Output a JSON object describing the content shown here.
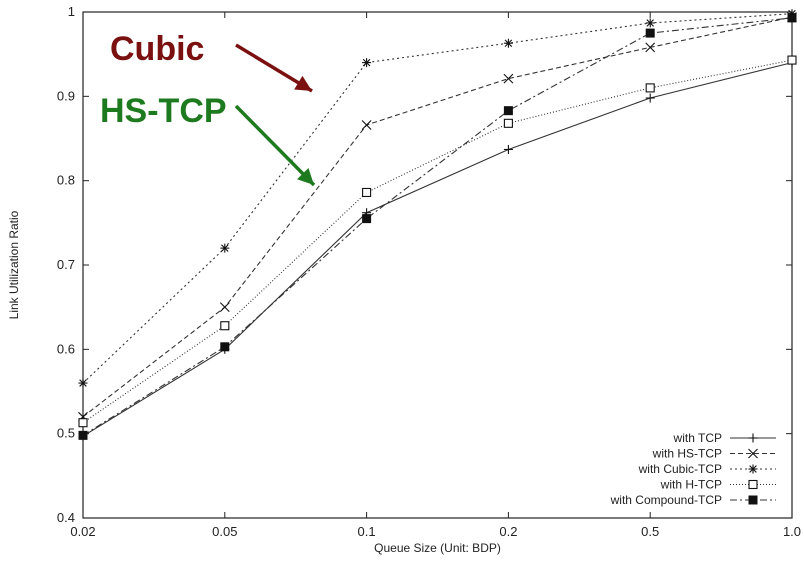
{
  "chart_data": {
    "type": "line",
    "xlabel": "Queue Size (Unit: BDP)",
    "ylabel": "Link Utilization Ratio",
    "x_categories": [
      "0.02",
      "0.05",
      "0.1",
      "0.2",
      "0.5",
      "1.0"
    ],
    "y_ticks": [
      "0.4",
      "0.5",
      "0.6",
      "0.7",
      "0.8",
      "0.9",
      "1"
    ],
    "ylim": [
      0.4,
      1.0
    ],
    "grid": false,
    "legend_position": "bottom-right",
    "series": [
      {
        "name": "with TCP",
        "marker": "plus",
        "dash": "solid",
        "values": [
          0.497,
          0.6,
          0.762,
          0.837,
          0.898,
          0.94
        ]
      },
      {
        "name": "with HS-TCP",
        "marker": "cross",
        "dash": "dashed",
        "values": [
          0.52,
          0.65,
          0.866,
          0.921,
          0.958,
          0.994
        ]
      },
      {
        "name": "with Cubic-TCP",
        "marker": "asterisk",
        "dash": "dotted",
        "values": [
          0.56,
          0.72,
          0.94,
          0.963,
          0.987,
          0.998
        ]
      },
      {
        "name": "with H-TCP",
        "marker": "open-square",
        "dash": "fine-dotted",
        "values": [
          0.513,
          0.628,
          0.786,
          0.868,
          0.91,
          0.943
        ]
      },
      {
        "name": "with Compound-TCP",
        "marker": "filled-square",
        "dash": "dash-dot",
        "values": [
          0.498,
          0.603,
          0.755,
          0.883,
          0.975,
          0.993
        ]
      }
    ],
    "annotations": [
      {
        "text": "Cubic",
        "color": "#7b1010"
      },
      {
        "text": "HS-TCP",
        "color": "#1e7a1e"
      }
    ]
  }
}
